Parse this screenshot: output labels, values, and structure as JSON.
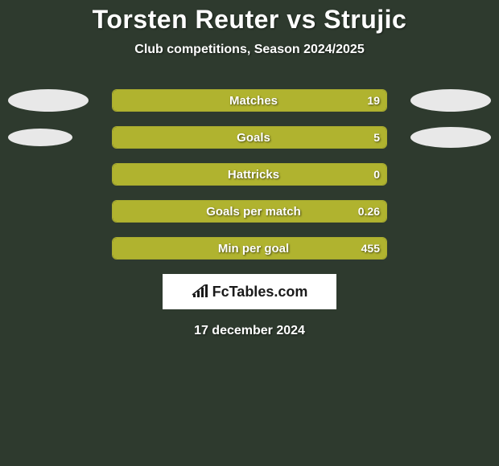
{
  "title": "Torsten Reuter vs Strujic",
  "subtitle": "Club competitions, Season 2024/2025",
  "date": "17 december 2024",
  "brand": "FcTables.com",
  "colors": {
    "background": "#2e3a2e",
    "bar_border": "#a8ab2f",
    "bar_fill": "#b0b32f",
    "avatar": "#e8e8e8",
    "text": "#ffffff"
  },
  "avatars": [
    {
      "left_w": 100,
      "left_h": 28,
      "right_w": 100,
      "right_h": 28
    },
    {
      "left_w": 80,
      "left_h": 22,
      "right_w": 100,
      "right_h": 26
    }
  ],
  "stats": [
    {
      "label": "Matches",
      "value": "19",
      "fill_pct": 100
    },
    {
      "label": "Goals",
      "value": "5",
      "fill_pct": 100
    },
    {
      "label": "Hattricks",
      "value": "0",
      "fill_pct": 100
    },
    {
      "label": "Goals per match",
      "value": "0.26",
      "fill_pct": 100
    },
    {
      "label": "Min per goal",
      "value": "455",
      "fill_pct": 100
    }
  ]
}
